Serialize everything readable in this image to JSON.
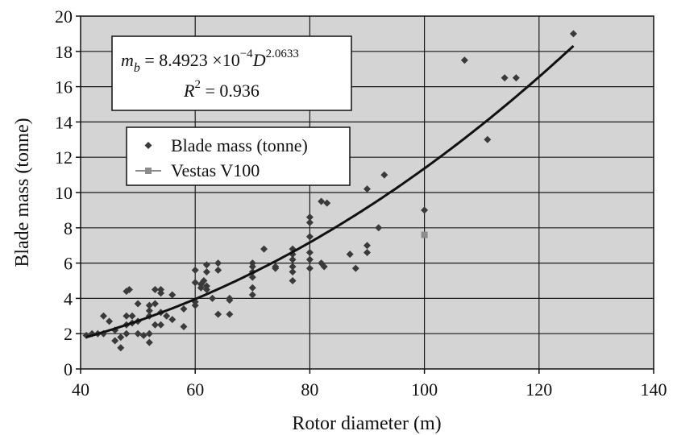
{
  "chart_data": {
    "type": "scatter",
    "xlabel": "Rotor diameter (m)",
    "ylabel": "Blade mass (tonne)",
    "xlim": [
      40,
      140
    ],
    "ylim": [
      0,
      20
    ],
    "xticks": [
      40,
      60,
      80,
      100,
      120,
      140
    ],
    "yticks": [
      0,
      2,
      4,
      6,
      8,
      10,
      12,
      14,
      16,
      18,
      20
    ],
    "x_tick_labels": [
      "40",
      "60",
      "80",
      "100",
      "120",
      "140"
    ],
    "y_tick_labels": [
      "0",
      "2",
      "4",
      "6",
      "8",
      "10",
      "12",
      "14",
      "16",
      "18",
      "20"
    ],
    "grid": true,
    "legend_position": "upper-left",
    "colors": {
      "plot_background": "#d4d4d4",
      "grid": "#1a1a1a",
      "blade_points": "#3a3a3a",
      "vestas_point": "#8c8c8c",
      "trend_line": "#111111"
    },
    "annotation": {
      "line1_left": "m",
      "line1_sub": "b",
      "line1_mid": " = 8.4923 ×10",
      "line1_exp": "−4",
      "line1_D": "D",
      "line1_exp2": "2.0633",
      "line2_R": "R",
      "line2_exp": "2",
      "line2_rest": " = 0.936"
    },
    "trend": {
      "coefficient": 0.00084923,
      "exponent": 2.0633,
      "x_range": [
        41,
        126
      ]
    },
    "series": [
      {
        "name": "Blade mass (tonne)",
        "marker": "diamond",
        "points": [
          [
            41,
            1.9
          ],
          [
            42,
            2.0
          ],
          [
            43,
            2.0
          ],
          [
            44,
            3.0
          ],
          [
            44,
            2.0
          ],
          [
            45,
            2.7
          ],
          [
            46,
            1.6
          ],
          [
            46,
            2.2
          ],
          [
            47,
            1.2
          ],
          [
            47,
            1.8
          ],
          [
            48,
            2.0
          ],
          [
            48,
            2.5
          ],
          [
            48,
            3.0
          ],
          [
            48,
            4.4
          ],
          [
            48.5,
            4.5
          ],
          [
            49,
            3.0
          ],
          [
            49,
            2.6
          ],
          [
            50,
            2.0
          ],
          [
            50,
            3.7
          ],
          [
            50,
            2.7
          ],
          [
            51,
            1.9
          ],
          [
            52,
            1.5
          ],
          [
            52,
            2.0
          ],
          [
            52,
            3.0
          ],
          [
            52,
            3.6
          ],
          [
            52,
            3.3
          ],
          [
            53,
            4.5
          ],
          [
            53,
            2.5
          ],
          [
            53,
            3.7
          ],
          [
            54,
            4.3
          ],
          [
            54,
            4.5
          ],
          [
            54,
            2.5
          ],
          [
            54,
            3.2
          ],
          [
            55,
            3.0
          ],
          [
            56,
            2.8
          ],
          [
            56,
            4.2
          ],
          [
            58,
            3.4
          ],
          [
            58,
            2.4
          ],
          [
            60,
            5.6
          ],
          [
            60,
            4.9
          ],
          [
            60,
            3.8
          ],
          [
            60,
            3.6
          ],
          [
            61,
            4.6
          ],
          [
            61,
            4.8
          ],
          [
            61.5,
            5.0
          ],
          [
            62,
            5.9
          ],
          [
            62,
            4.7
          ],
          [
            62,
            4.5
          ],
          [
            62,
            5.5
          ],
          [
            63,
            4.0
          ],
          [
            64,
            5.6
          ],
          [
            64,
            3.1
          ],
          [
            64,
            6.0
          ],
          [
            66,
            4.0
          ],
          [
            66,
            3.1
          ],
          [
            66,
            3.9
          ],
          [
            70,
            6.0
          ],
          [
            70,
            5.5
          ],
          [
            70,
            5.2
          ],
          [
            70,
            4.6
          ],
          [
            70,
            4.2
          ],
          [
            70,
            5.8
          ],
          [
            72,
            6.8
          ],
          [
            74,
            5.7
          ],
          [
            74,
            5.8
          ],
          [
            77,
            6.8
          ],
          [
            77,
            6.5
          ],
          [
            77,
            6.2
          ],
          [
            77,
            5.8
          ],
          [
            77,
            5.5
          ],
          [
            77,
            5.0
          ],
          [
            80,
            8.6
          ],
          [
            80,
            8.3
          ],
          [
            80,
            7.5
          ],
          [
            80,
            6.6
          ],
          [
            80,
            6.2
          ],
          [
            80,
            5.7
          ],
          [
            82,
            9.5
          ],
          [
            82,
            6.0
          ],
          [
            82.5,
            5.8
          ],
          [
            83,
            9.4
          ],
          [
            87,
            6.5
          ],
          [
            88,
            5.7
          ],
          [
            90,
            10.2
          ],
          [
            90,
            7.0
          ],
          [
            90,
            6.6
          ],
          [
            92,
            8.0
          ],
          [
            93,
            11.0
          ],
          [
            100,
            9.0
          ],
          [
            107,
            17.5
          ],
          [
            111,
            13.0
          ],
          [
            114,
            16.5
          ],
          [
            116,
            16.5
          ],
          [
            126,
            19.0
          ]
        ]
      },
      {
        "name": "Vestas V100",
        "marker": "square",
        "points": [
          [
            100,
            7.6
          ]
        ]
      }
    ]
  }
}
